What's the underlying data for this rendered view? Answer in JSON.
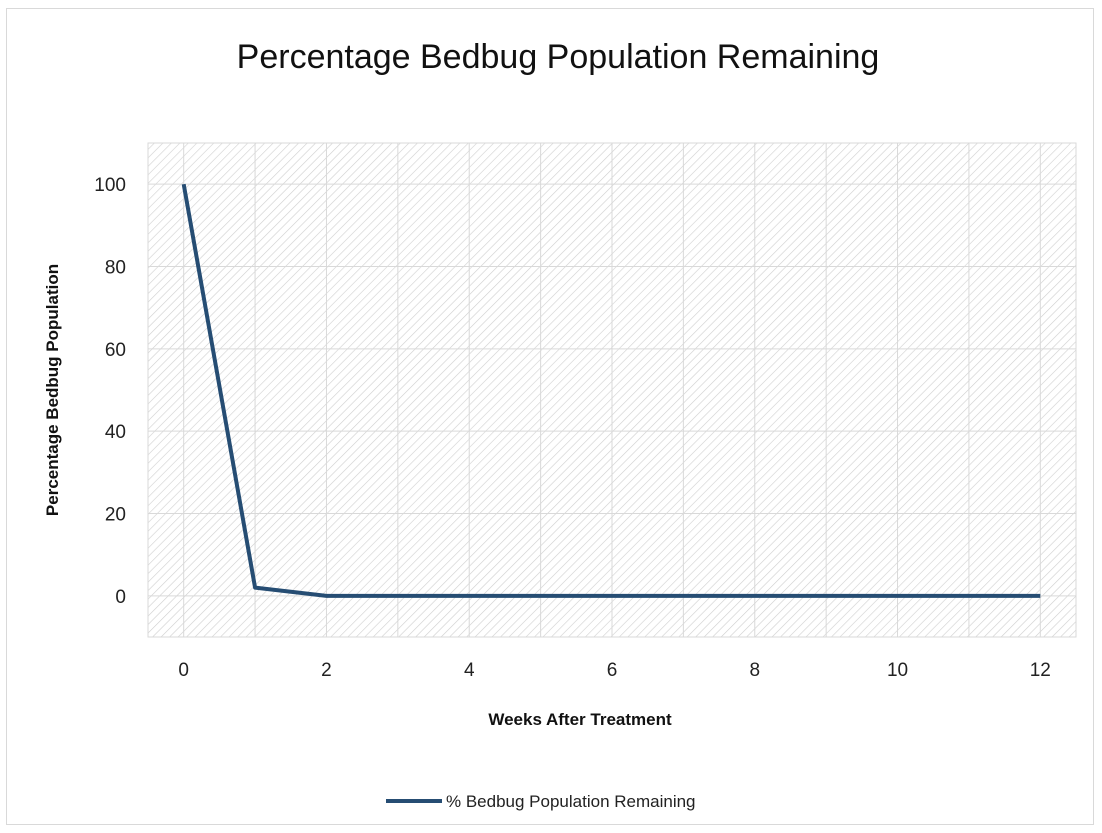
{
  "chart_data": {
    "type": "line",
    "title": "Percentage Bedbug Population Remaining",
    "xlabel": "Weeks After Treatment",
    "ylabel": "Percentage Bedbug Population",
    "x": [
      0,
      1,
      2,
      3,
      4,
      5,
      6,
      7,
      8,
      9,
      10,
      11,
      12
    ],
    "x_ticks": [
      "0",
      "2",
      "4",
      "6",
      "8",
      "10",
      "12"
    ],
    "y_ticks": [
      "0",
      "20",
      "40",
      "60",
      "80",
      "100"
    ],
    "xlim": [
      -0.5,
      12.5
    ],
    "ylim": [
      -10,
      110
    ],
    "grid": true,
    "legend_position": "bottom",
    "series": [
      {
        "name": "% Bedbug Population Remaining",
        "color": "#264d73",
        "values": [
          100,
          2,
          0,
          0,
          0,
          0,
          0,
          0,
          0,
          0,
          0,
          0,
          0
        ]
      }
    ]
  }
}
